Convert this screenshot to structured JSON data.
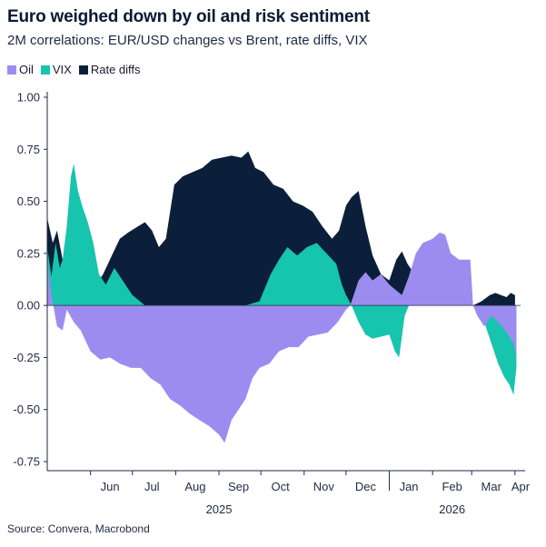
{
  "chart_data": {
    "type": "area",
    "title": "Euro weighed down by oil and risk sentiment",
    "subtitle": "2M correlations: EUR/USD changes vs Brent, rate diffs, VIX",
    "source": "Source: Convera, Macrobond",
    "legend_position": "top-left",
    "grid": false,
    "ylim": [
      -0.75,
      1.0
    ],
    "yticks": [
      "1.00",
      "0.75",
      "0.50",
      "0.25",
      "0.00",
      "-0.25",
      "-0.50",
      "-0.75"
    ],
    "xlim": [
      "2025-05-01",
      "2026-04-05"
    ],
    "month_labels": [
      {
        "label": "Jun",
        "date": "2025-06-15"
      },
      {
        "label": "Jul",
        "date": "2025-07-15"
      },
      {
        "label": "Aug",
        "date": "2025-08-15"
      },
      {
        "label": "Sep",
        "date": "2025-09-15"
      },
      {
        "label": "Oct",
        "date": "2025-10-15"
      },
      {
        "label": "Nov",
        "date": "2025-11-15"
      },
      {
        "label": "Dec",
        "date": "2025-12-15"
      },
      {
        "label": "Jan",
        "date": "2026-01-15"
      },
      {
        "label": "Feb",
        "date": "2026-02-15"
      },
      {
        "label": "Mar",
        "date": "2026-03-15"
      },
      {
        "label": "Apr",
        "date": "2026-04-05"
      }
    ],
    "year_labels": [
      {
        "label": "2025",
        "date": "2025-09-01"
      },
      {
        "label": "2026",
        "date": "2026-02-15"
      }
    ],
    "series": [
      {
        "name": "Rate diffs",
        "color": "#0b1f3a",
        "points": [
          [
            "2025-05-01",
            0.42
          ],
          [
            "2025-05-05",
            0.3
          ],
          [
            "2025-05-08",
            0.36
          ],
          [
            "2025-05-12",
            0.22
          ],
          [
            "2025-05-16",
            0.15
          ],
          [
            "2025-05-22",
            0.1
          ],
          [
            "2025-05-28",
            0.12
          ],
          [
            "2025-06-03",
            0.08
          ],
          [
            "2025-06-10",
            0.15
          ],
          [
            "2025-06-17",
            0.25
          ],
          [
            "2025-06-22",
            0.32
          ],
          [
            "2025-06-28",
            0.35
          ],
          [
            "2025-07-05",
            0.38
          ],
          [
            "2025-07-10",
            0.4
          ],
          [
            "2025-07-15",
            0.36
          ],
          [
            "2025-07-20",
            0.28
          ],
          [
            "2025-07-25",
            0.32
          ],
          [
            "2025-07-31",
            0.58
          ],
          [
            "2025-08-06",
            0.62
          ],
          [
            "2025-08-13",
            0.64
          ],
          [
            "2025-08-20",
            0.66
          ],
          [
            "2025-08-27",
            0.7
          ],
          [
            "2025-09-03",
            0.71
          ],
          [
            "2025-09-10",
            0.72
          ],
          [
            "2025-09-17",
            0.71
          ],
          [
            "2025-09-22",
            0.74
          ],
          [
            "2025-09-27",
            0.66
          ],
          [
            "2025-10-03",
            0.64
          ],
          [
            "2025-10-10",
            0.58
          ],
          [
            "2025-10-17",
            0.56
          ],
          [
            "2025-10-24",
            0.5
          ],
          [
            "2025-10-31",
            0.48
          ],
          [
            "2025-11-07",
            0.45
          ],
          [
            "2025-11-14",
            0.38
          ],
          [
            "2025-11-21",
            0.32
          ],
          [
            "2025-11-26",
            0.36
          ],
          [
            "2025-12-01",
            0.48
          ],
          [
            "2025-12-05",
            0.52
          ],
          [
            "2025-12-10",
            0.55
          ],
          [
            "2025-12-15",
            0.38
          ],
          [
            "2025-12-20",
            0.24
          ],
          [
            "2025-12-26",
            0.15
          ],
          [
            "2026-01-01",
            0.12
          ],
          [
            "2026-01-06",
            0.22
          ],
          [
            "2026-01-10",
            0.26
          ],
          [
            "2026-01-14",
            0.2
          ],
          [
            "2026-01-18",
            0.16
          ],
          [
            "2026-01-22",
            0.1
          ],
          [
            "2026-01-28",
            0.05
          ],
          [
            "2026-02-04",
            0.02
          ],
          [
            "2026-02-10",
            0.0
          ],
          [
            "2026-02-18",
            0.0
          ],
          [
            "2026-02-24",
            0.0
          ],
          [
            "2026-03-02",
            0.0
          ],
          [
            "2026-03-08",
            0.02
          ],
          [
            "2026-03-14",
            0.05
          ],
          [
            "2026-03-18",
            0.06
          ],
          [
            "2026-03-22",
            0.05
          ],
          [
            "2026-03-26",
            0.04
          ],
          [
            "2026-03-29",
            0.06
          ],
          [
            "2026-04-01",
            0.05
          ]
        ]
      },
      {
        "name": "VIX",
        "color": "#17c4ad",
        "points": [
          [
            "2025-05-01",
            0.28
          ],
          [
            "2025-05-04",
            0.14
          ],
          [
            "2025-05-07",
            0.3
          ],
          [
            "2025-05-10",
            0.18
          ],
          [
            "2025-05-12",
            0.22
          ],
          [
            "2025-05-15",
            0.38
          ],
          [
            "2025-05-18",
            0.62
          ],
          [
            "2025-05-20",
            0.68
          ],
          [
            "2025-05-23",
            0.55
          ],
          [
            "2025-05-26",
            0.48
          ],
          [
            "2025-05-30",
            0.4
          ],
          [
            "2025-06-03",
            0.3
          ],
          [
            "2025-06-07",
            0.15
          ],
          [
            "2025-06-12",
            0.1
          ],
          [
            "2025-06-18",
            0.18
          ],
          [
            "2025-06-24",
            0.12
          ],
          [
            "2025-07-01",
            0.05
          ],
          [
            "2025-07-10",
            0.0
          ],
          [
            "2025-09-05",
            0.0
          ],
          [
            "2025-09-20",
            0.0
          ],
          [
            "2025-09-30",
            0.02
          ],
          [
            "2025-10-08",
            0.15
          ],
          [
            "2025-10-14",
            0.22
          ],
          [
            "2025-10-20",
            0.28
          ],
          [
            "2025-10-27",
            0.24
          ],
          [
            "2025-11-03",
            0.28
          ],
          [
            "2025-11-10",
            0.3
          ],
          [
            "2025-11-17",
            0.25
          ],
          [
            "2025-11-24",
            0.2
          ],
          [
            "2025-11-28",
            0.1
          ],
          [
            "2025-12-01",
            0.05
          ],
          [
            "2025-12-05",
            0.0
          ],
          [
            "2025-12-10",
            -0.08
          ],
          [
            "2025-12-15",
            -0.14
          ],
          [
            "2025-12-20",
            -0.16
          ],
          [
            "2025-12-26",
            -0.15
          ],
          [
            "2026-01-01",
            -0.14
          ],
          [
            "2026-01-05",
            -0.22
          ],
          [
            "2026-01-08",
            -0.25
          ],
          [
            "2026-01-10",
            -0.15
          ],
          [
            "2026-01-12",
            -0.05
          ],
          [
            "2026-01-15",
            0.0
          ],
          [
            "2026-03-05",
            0.0
          ],
          [
            "2026-03-10",
            -0.08
          ],
          [
            "2026-03-15",
            -0.18
          ],
          [
            "2026-03-20",
            -0.28
          ],
          [
            "2026-03-24",
            -0.34
          ],
          [
            "2026-03-28",
            -0.38
          ],
          [
            "2026-03-31",
            -0.43
          ],
          [
            "2026-04-02",
            -0.3
          ]
        ]
      },
      {
        "name": "Oil",
        "color": "#9d8cf0",
        "points": [
          [
            "2025-05-01",
            0.22
          ],
          [
            "2025-05-04",
            0.05
          ],
          [
            "2025-05-08",
            -0.1
          ],
          [
            "2025-05-12",
            -0.12
          ],
          [
            "2025-05-15",
            -0.02
          ],
          [
            "2025-05-20",
            -0.08
          ],
          [
            "2025-05-25",
            -0.12
          ],
          [
            "2025-06-01",
            -0.22
          ],
          [
            "2025-06-08",
            -0.26
          ],
          [
            "2025-06-15",
            -0.25
          ],
          [
            "2025-06-22",
            -0.28
          ],
          [
            "2025-06-30",
            -0.3
          ],
          [
            "2025-07-07",
            -0.3
          ],
          [
            "2025-07-14",
            -0.35
          ],
          [
            "2025-07-21",
            -0.38
          ],
          [
            "2025-07-28",
            -0.45
          ],
          [
            "2025-08-04",
            -0.48
          ],
          [
            "2025-08-11",
            -0.52
          ],
          [
            "2025-08-18",
            -0.55
          ],
          [
            "2025-08-25",
            -0.58
          ],
          [
            "2025-09-01",
            -0.62
          ],
          [
            "2025-09-05",
            -0.66
          ],
          [
            "2025-09-10",
            -0.55
          ],
          [
            "2025-09-15",
            -0.5
          ],
          [
            "2025-09-20",
            -0.45
          ],
          [
            "2025-09-25",
            -0.35
          ],
          [
            "2025-09-30",
            -0.3
          ],
          [
            "2025-10-07",
            -0.28
          ],
          [
            "2025-10-14",
            -0.22
          ],
          [
            "2025-10-21",
            -0.2
          ],
          [
            "2025-10-28",
            -0.2
          ],
          [
            "2025-11-04",
            -0.15
          ],
          [
            "2025-11-11",
            -0.14
          ],
          [
            "2025-11-18",
            -0.13
          ],
          [
            "2025-11-25",
            -0.08
          ],
          [
            "2025-12-01",
            -0.02
          ],
          [
            "2025-12-04",
            0.0
          ],
          [
            "2025-12-10",
            0.12
          ],
          [
            "2025-12-15",
            0.16
          ],
          [
            "2025-12-20",
            0.12
          ],
          [
            "2025-12-26",
            0.15
          ],
          [
            "2026-01-01",
            0.1
          ],
          [
            "2026-01-10",
            0.05
          ],
          [
            "2026-01-15",
            0.14
          ],
          [
            "2026-01-20",
            0.25
          ],
          [
            "2026-01-25",
            0.3
          ],
          [
            "2026-02-01",
            0.32
          ],
          [
            "2026-02-06",
            0.35
          ],
          [
            "2026-02-10",
            0.34
          ],
          [
            "2026-02-14",
            0.25
          ],
          [
            "2026-02-20",
            0.22
          ],
          [
            "2026-02-25",
            0.22
          ],
          [
            "2026-02-28",
            0.22
          ],
          [
            "2026-03-02",
            0.0
          ],
          [
            "2026-03-05",
            -0.05
          ],
          [
            "2026-03-10",
            -0.1
          ],
          [
            "2026-03-15",
            -0.05
          ],
          [
            "2026-03-20",
            -0.08
          ],
          [
            "2026-03-25",
            -0.12
          ],
          [
            "2026-03-31",
            -0.18
          ],
          [
            "2026-04-02",
            -0.25
          ]
        ]
      }
    ],
    "legend": [
      {
        "name": "Oil",
        "color": "#9d8cf0"
      },
      {
        "name": "VIX",
        "color": "#17c4ad"
      },
      {
        "name": "Rate diffs",
        "color": "#0b1f3a"
      }
    ]
  }
}
